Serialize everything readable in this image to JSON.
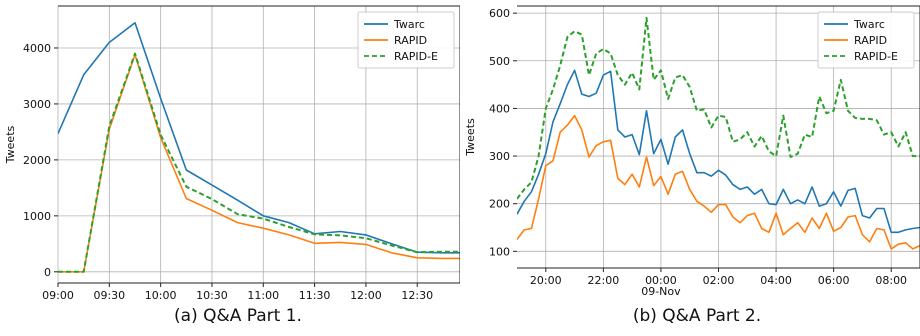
{
  "captions": [
    "(a) Q&A Part 1.",
    "(b) Q&A Part 2."
  ],
  "chart_data": [
    {
      "type": "line",
      "xlabel": "",
      "ylabel": "Tweets",
      "xlim": [
        0,
        235
      ],
      "ylim": [
        -200,
        4750
      ],
      "xticks": [
        0,
        30,
        60,
        90,
        120,
        150,
        180,
        210
      ],
      "xtick_labels": [
        "09:00",
        "09:30",
        "10:00",
        "10:30",
        "11:00",
        "11:30",
        "12:00",
        "12:30"
      ],
      "yticks": [
        0,
        1000,
        2000,
        3000,
        4000
      ],
      "ytick_labels": [
        "0",
        "1000",
        "2000",
        "3000",
        "4000"
      ],
      "grid": true,
      "legend": "top-right",
      "series": [
        {
          "name": "Twarc",
          "color": "#1f77b4",
          "dash": "solid",
          "x": [
            0,
            15,
            30,
            45,
            60,
            75,
            90,
            105,
            120,
            135,
            150,
            165,
            180,
            195,
            210,
            225,
            235
          ],
          "y": [
            2470,
            3520,
            4100,
            4450,
            3100,
            1820,
            1550,
            1280,
            1000,
            880,
            680,
            720,
            660,
            500,
            350,
            340,
            340
          ]
        },
        {
          "name": "RAPID",
          "color": "#ff7f0e",
          "dash": "solid",
          "x": [
            0,
            15,
            30,
            45,
            60,
            75,
            90,
            105,
            120,
            135,
            150,
            165,
            180,
            195,
            210,
            225,
            235
          ],
          "y": [
            0,
            0,
            2550,
            3880,
            2400,
            1310,
            1100,
            880,
            780,
            660,
            510,
            525,
            490,
            340,
            250,
            240,
            240
          ]
        },
        {
          "name": "RAPID-E",
          "color": "#2ca02c",
          "dash": "dashed",
          "x": [
            0,
            15,
            30,
            45,
            60,
            75,
            90,
            105,
            120,
            135,
            150,
            165,
            180,
            195,
            210,
            225,
            235
          ],
          "y": [
            0,
            0,
            2600,
            3900,
            2450,
            1520,
            1300,
            1030,
            950,
            800,
            670,
            650,
            600,
            470,
            350,
            360,
            360
          ]
        }
      ]
    },
    {
      "type": "line",
      "xlabel": "",
      "ylabel": "Tweets",
      "xlim": [
        -1,
        13
      ],
      "ylim": [
        65,
        615
      ],
      "xticks": [
        0,
        2,
        4,
        6,
        8,
        10,
        12
      ],
      "xtick_labels": [
        "20:00",
        "22:00",
        "00:00\n09-Nov",
        "02:00",
        "04:00",
        "06:00",
        "08:00"
      ],
      "yticks": [
        100,
        200,
        300,
        400,
        500,
        600
      ],
      "ytick_labels": [
        "100",
        "200",
        "300",
        "400",
        "500",
        "600"
      ],
      "grid": true,
      "legend": "top-right",
      "series": [
        {
          "name": "Twarc",
          "color": "#1f77b4",
          "dash": "solid",
          "x": [
            -1.0,
            -0.75,
            -0.5,
            -0.25,
            0.0,
            0.25,
            0.5,
            0.75,
            1.0,
            1.25,
            1.5,
            1.75,
            2.0,
            2.25,
            2.5,
            2.75,
            3.0,
            3.25,
            3.5,
            3.75,
            4.0,
            4.25,
            4.5,
            4.75,
            5.0,
            5.25,
            5.5,
            5.75,
            6.0,
            6.25,
            6.5,
            6.75,
            7.0,
            7.25,
            7.5,
            7.75,
            8.0,
            8.25,
            8.5,
            8.75,
            9.0,
            9.25,
            9.5,
            9.75,
            10.0,
            10.25,
            10.5,
            10.75,
            11.0,
            11.25,
            11.5,
            11.75,
            12.0,
            12.25,
            12.5,
            12.75,
            13.0
          ],
          "y": [
            178,
            205,
            225,
            262,
            305,
            372,
            410,
            450,
            480,
            430,
            425,
            432,
            470,
            478,
            355,
            340,
            345,
            303,
            395,
            305,
            335,
            283,
            340,
            355,
            305,
            265,
            265,
            258,
            270,
            260,
            240,
            230,
            235,
            220,
            230,
            200,
            198,
            230,
            200,
            208,
            200,
            235,
            195,
            200,
            225,
            195,
            228,
            232,
            175,
            170,
            190,
            190,
            140,
            140,
            145,
            148,
            150
          ]
        },
        {
          "name": "RAPID",
          "color": "#ff7f0e",
          "dash": "solid",
          "x": [
            -1.0,
            -0.75,
            -0.5,
            -0.25,
            0.0,
            0.25,
            0.5,
            0.75,
            1.0,
            1.25,
            1.5,
            1.75,
            2.0,
            2.25,
            2.5,
            2.75,
            3.0,
            3.25,
            3.5,
            3.75,
            4.0,
            4.25,
            4.5,
            4.75,
            5.0,
            5.25,
            5.5,
            5.75,
            6.0,
            6.25,
            6.5,
            6.75,
            7.0,
            7.25,
            7.5,
            7.75,
            8.0,
            8.25,
            8.5,
            8.75,
            9.0,
            9.25,
            9.5,
            9.75,
            10.0,
            10.25,
            10.5,
            10.75,
            11.0,
            11.25,
            11.5,
            11.75,
            12.0,
            12.25,
            12.5,
            12.75,
            13.0
          ],
          "y": [
            125,
            145,
            148,
            210,
            280,
            290,
            350,
            365,
            385,
            355,
            298,
            322,
            330,
            333,
            253,
            240,
            262,
            235,
            298,
            238,
            257,
            220,
            262,
            268,
            230,
            205,
            195,
            182,
            198,
            198,
            172,
            160,
            175,
            180,
            148,
            140,
            180,
            135,
            148,
            160,
            140,
            170,
            148,
            180,
            142,
            150,
            172,
            175,
            135,
            120,
            148,
            145,
            105,
            115,
            118,
            105,
            112
          ]
        },
        {
          "name": "RAPID-E",
          "color": "#2ca02c",
          "dash": "dashed",
          "x": [
            -1.0,
            -0.75,
            -0.5,
            -0.25,
            0.0,
            0.25,
            0.5,
            0.75,
            1.0,
            1.25,
            1.5,
            1.75,
            2.0,
            2.25,
            2.5,
            2.75,
            3.0,
            3.25,
            3.5,
            3.75,
            4.0,
            4.25,
            4.5,
            4.75,
            5.0,
            5.25,
            5.5,
            5.75,
            6.0,
            6.25,
            6.5,
            6.75,
            7.0,
            7.25,
            7.5,
            7.75,
            8.0,
            8.25,
            8.5,
            8.75,
            9.0,
            9.25,
            9.5,
            9.75,
            10.0,
            10.25,
            10.5,
            10.75,
            11.0,
            11.25,
            11.5,
            11.75,
            12.0,
            12.25,
            12.5,
            12.75,
            13.0
          ],
          "y": [
            210,
            230,
            245,
            300,
            400,
            440,
            490,
            550,
            562,
            555,
            470,
            515,
            525,
            515,
            470,
            450,
            475,
            440,
            590,
            460,
            480,
            420,
            465,
            470,
            445,
            395,
            398,
            360,
            385,
            382,
            330,
            335,
            350,
            320,
            342,
            310,
            300,
            385,
            298,
            305,
            345,
            340,
            425,
            390,
            395,
            460,
            395,
            380,
            378,
            378,
            375,
            345,
            350,
            320,
            350,
            300,
            300
          ]
        }
      ]
    }
  ]
}
